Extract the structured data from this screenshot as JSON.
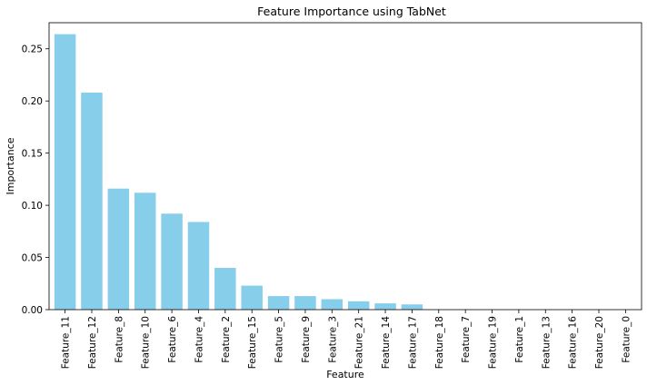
{
  "chart_data": {
    "type": "bar",
    "title": "Feature Importance using TabNet",
    "xlabel": "Feature",
    "ylabel": "Importance",
    "ylim": [
      0,
      0.275
    ],
    "yticks": [
      0.0,
      0.05,
      0.1,
      0.15,
      0.2,
      0.25
    ],
    "ytick_labels": [
      "0.00",
      "0.05",
      "0.10",
      "0.15",
      "0.20",
      "0.25"
    ],
    "grid": false,
    "bar_color": "#87ceeb",
    "categories": [
      "Feature_11",
      "Feature_12",
      "Feature_8",
      "Feature_10",
      "Feature_6",
      "Feature_4",
      "Feature_2",
      "Feature_15",
      "Feature_5",
      "Feature_9",
      "Feature_3",
      "Feature_21",
      "Feature_14",
      "Feature_17",
      "Feature_18",
      "Feature_7",
      "Feature_19",
      "Feature_1",
      "Feature_13",
      "Feature_16",
      "Feature_20",
      "Feature_0"
    ],
    "values": [
      0.264,
      0.208,
      0.116,
      0.112,
      0.092,
      0.084,
      0.04,
      0.023,
      0.013,
      0.013,
      0.01,
      0.008,
      0.006,
      0.005,
      0.0,
      0.0,
      0.0,
      0.0,
      0.0,
      0.0,
      0.0,
      0.0
    ]
  }
}
